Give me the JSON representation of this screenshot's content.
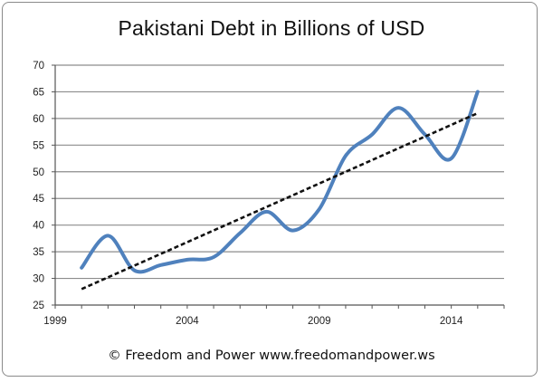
{
  "chart_data": {
    "type": "line",
    "title": "Pakistani Debt in Billions of USD",
    "xlabel": "",
    "ylabel": "",
    "xlim": [
      1999,
      2016
    ],
    "ylim": [
      25,
      70
    ],
    "x_ticks": [
      "1999",
      "2004",
      "2009",
      "2014"
    ],
    "y_ticks": [
      "70",
      "65",
      "60",
      "55",
      "50",
      "45",
      "40",
      "35",
      "30",
      "25"
    ],
    "grid": true,
    "series": [
      {
        "color": "#4f81bd",
        "style": "solid-smooth",
        "points": [
          [
            2000,
            32
          ],
          [
            2001,
            38
          ],
          [
            2002,
            31.5
          ],
          [
            2003,
            32.5
          ],
          [
            2004,
            33.5
          ],
          [
            2005,
            34
          ],
          [
            2006,
            38.5
          ],
          [
            2007,
            42.5
          ],
          [
            2008,
            39
          ],
          [
            2009,
            43
          ],
          [
            2010,
            53
          ],
          [
            2011,
            57
          ],
          [
            2012,
            62
          ],
          [
            2013,
            57
          ],
          [
            2014,
            52.5
          ],
          [
            2015,
            65
          ]
        ]
      },
      {
        "color": "#111111",
        "style": "dashed-trend",
        "points": [
          [
            2000,
            28
          ],
          [
            2015,
            61
          ]
        ]
      }
    ]
  },
  "footer": "© Freedom and Power www.freedomandpower.ws"
}
